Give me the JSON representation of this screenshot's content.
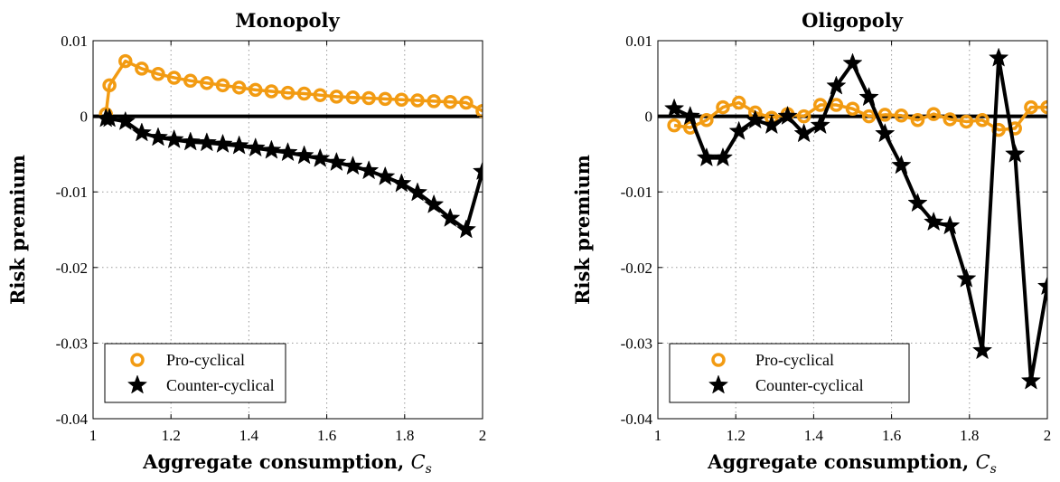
{
  "chart_data": [
    {
      "type": "line",
      "title": "Monopoly",
      "xlabel": "Aggregate consumption, ",
      "xlabel_symbol": "C",
      "xlabel_subscript": "s",
      "ylabel": "Risk premium",
      "xlim": [
        1,
        2
      ],
      "ylim": [
        -0.04,
        0.01
      ],
      "xticks": [
        1,
        1.2,
        1.4,
        1.6,
        1.8,
        2
      ],
      "xtick_labels": [
        "1",
        "1.2",
        "1.4",
        "1.6",
        "1.8",
        "2"
      ],
      "yticks": [
        -0.04,
        -0.03,
        -0.02,
        -0.01,
        0,
        0.01
      ],
      "ytick_labels": [
        "-0.04",
        "-0.03",
        "-0.02",
        "-0.01",
        "0",
        "0.01"
      ],
      "grid": true,
      "zero_line": true,
      "legend_position": "bottom-left",
      "series": [
        {
          "name": "Pro-cyclical",
          "marker": "circle",
          "color": "#f29b12",
          "x": [
            1.033,
            1.042,
            1.083,
            1.125,
            1.167,
            1.208,
            1.25,
            1.292,
            1.333,
            1.375,
            1.417,
            1.458,
            1.5,
            1.542,
            1.583,
            1.625,
            1.667,
            1.708,
            1.75,
            1.792,
            1.833,
            1.875,
            1.917,
            1.958,
            2.0
          ],
          "y": [
            0.0003,
            0.0041,
            0.0073,
            0.0063,
            0.0056,
            0.0051,
            0.0047,
            0.0044,
            0.0041,
            0.0038,
            0.0035,
            0.0033,
            0.0031,
            0.003,
            0.0028,
            0.0026,
            0.0025,
            0.0024,
            0.0023,
            0.0022,
            0.0021,
            0.002,
            0.0019,
            0.0018,
            0.0007
          ]
        },
        {
          "name": "Counter-cyclical",
          "marker": "star",
          "color": "#000000",
          "x": [
            1.033,
            1.042,
            1.083,
            1.125,
            1.167,
            1.208,
            1.25,
            1.292,
            1.333,
            1.375,
            1.417,
            1.458,
            1.5,
            1.542,
            1.583,
            1.625,
            1.667,
            1.708,
            1.75,
            1.792,
            1.833,
            1.875,
            1.917,
            1.958,
            2.0
          ],
          "y": [
            -0.0003,
            -0.0003,
            -0.0007,
            -0.0022,
            -0.0028,
            -0.0031,
            -0.0034,
            -0.0035,
            -0.0037,
            -0.0039,
            -0.0042,
            -0.0045,
            -0.0048,
            -0.0052,
            -0.0056,
            -0.0061,
            -0.0066,
            -0.0072,
            -0.008,
            -0.0089,
            -0.0101,
            -0.0117,
            -0.0135,
            -0.015,
            -0.0073
          ]
        }
      ]
    },
    {
      "type": "line",
      "title": "Oligopoly",
      "xlabel": "Aggregate consumption, ",
      "xlabel_symbol": "C",
      "xlabel_subscript": "s",
      "ylabel": "Risk premium",
      "xlim": [
        1,
        2
      ],
      "ylim": [
        -0.04,
        0.01
      ],
      "xticks": [
        1,
        1.2,
        1.4,
        1.6,
        1.8,
        2
      ],
      "xtick_labels": [
        "1",
        "1.2",
        "1.4",
        "1.6",
        "1.8",
        "2"
      ],
      "yticks": [
        -0.04,
        -0.03,
        -0.02,
        -0.01,
        0,
        0.01
      ],
      "ytick_labels": [
        "-0.04",
        "-0.03",
        "-0.02",
        "-0.01",
        "0",
        "0.01"
      ],
      "grid": true,
      "zero_line": true,
      "legend_position": "bottom-left",
      "series": [
        {
          "name": "Pro-cyclical",
          "marker": "circle",
          "color": "#f29b12",
          "x": [
            1.042,
            1.083,
            1.125,
            1.167,
            1.208,
            1.25,
            1.292,
            1.333,
            1.375,
            1.417,
            1.458,
            1.5,
            1.542,
            1.583,
            1.625,
            1.667,
            1.708,
            1.75,
            1.792,
            1.833,
            1.875,
            1.917,
            1.958,
            2.0
          ],
          "y": [
            -0.0012,
            -0.0015,
            -0.0005,
            0.0012,
            0.0018,
            0.0005,
            -0.0002,
            0.0003,
            0.0,
            0.0015,
            0.0015,
            0.001,
            0.0,
            0.0002,
            0.0001,
            -0.0005,
            0.0003,
            -0.0004,
            -0.0007,
            -0.0005,
            -0.0018,
            -0.0016,
            0.0012,
            0.0012
          ]
        },
        {
          "name": "Counter-cyclical",
          "marker": "star",
          "color": "#000000",
          "x": [
            1.042,
            1.083,
            1.125,
            1.167,
            1.208,
            1.25,
            1.292,
            1.333,
            1.375,
            1.417,
            1.458,
            1.5,
            1.542,
            1.583,
            1.625,
            1.667,
            1.708,
            1.75,
            1.792,
            1.833,
            1.875,
            1.917,
            1.958,
            2.0
          ],
          "y": [
            0.001,
            0.0,
            -0.0055,
            -0.0055,
            -0.002,
            -0.0005,
            -0.0012,
            0.0,
            -0.0023,
            -0.0012,
            0.004,
            0.007,
            0.0025,
            -0.0023,
            -0.0065,
            -0.0115,
            -0.014,
            -0.0145,
            -0.0215,
            -0.031,
            0.0077,
            -0.005,
            -0.035,
            -0.0225
          ]
        }
      ]
    }
  ]
}
